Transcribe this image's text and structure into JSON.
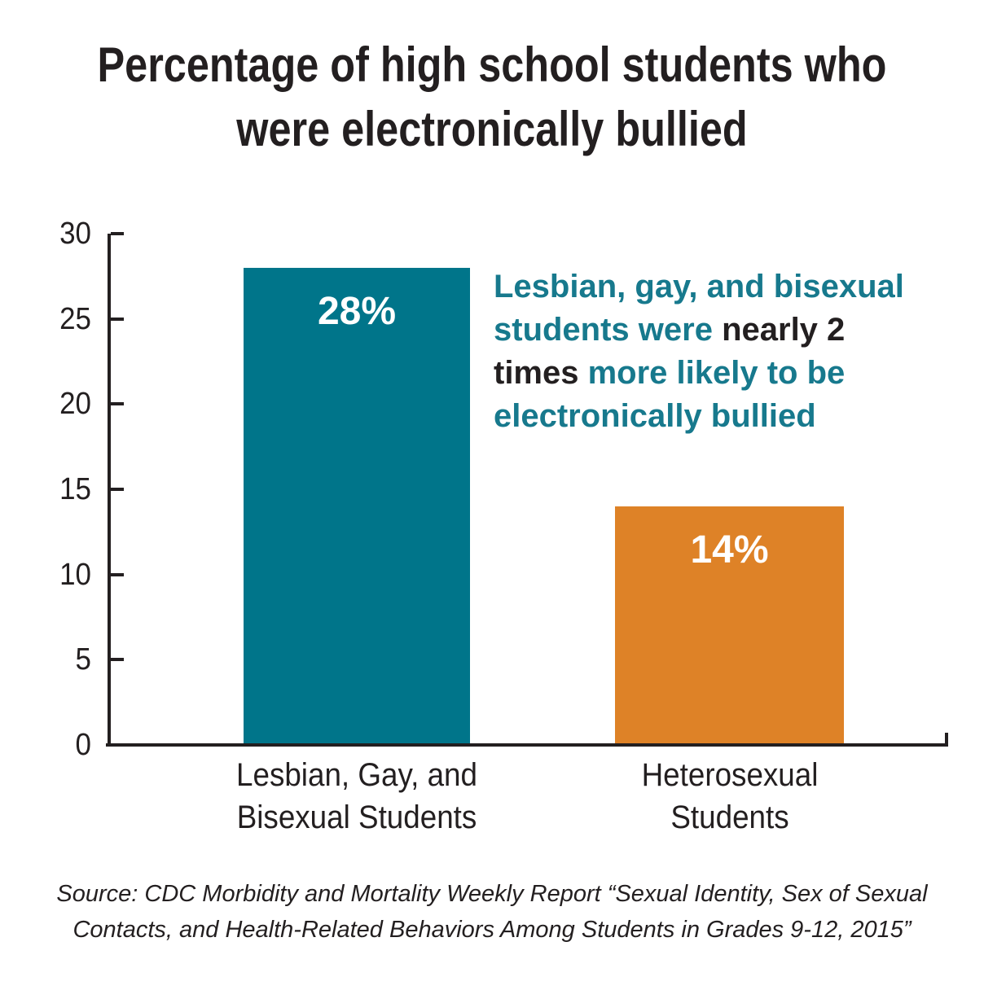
{
  "title": "Percentage of high school students who\nwere electronically bullied",
  "colors": {
    "teal": "#00758A",
    "orange": "#DE8227",
    "dark": "#231F20",
    "annotation_teal": "#17798D",
    "bar_label_text": "#FFFFFF"
  },
  "chart_data": {
    "type": "bar",
    "title": "Percentage of high school students who were electronically bullied",
    "categories": [
      "Lesbian, Gay, and\nBisexual Students",
      "Heterosexual\nStudents"
    ],
    "values": [
      28,
      14
    ],
    "bar_labels": [
      "28%",
      "14%"
    ],
    "bar_color_keys": [
      "teal",
      "orange"
    ],
    "xlabel": "",
    "ylabel": "",
    "ylim": [
      0,
      30
    ],
    "yticks": [
      0,
      5,
      10,
      15,
      20,
      25,
      30
    ],
    "grid": false,
    "legend": false
  },
  "annotation": {
    "lines": [
      [
        {
          "text": "Lesbian, gay, and bisexual",
          "color": "teal"
        }
      ],
      [
        {
          "text": "students were ",
          "color": "teal"
        },
        {
          "text": "nearly 2",
          "color": "dark"
        }
      ],
      [
        {
          "text": "times",
          "color": "dark"
        },
        {
          "text": " more likely to be",
          "color": "teal"
        }
      ],
      [
        {
          "text": "electronically bullied",
          "color": "teal"
        }
      ]
    ]
  },
  "source": "Source: CDC Morbidity and Mortality Weekly Report “Sexual Identity, Sex of Sexual\nContacts, and Health-Related Behaviors Among Students in Grades 9-12, 2015”"
}
